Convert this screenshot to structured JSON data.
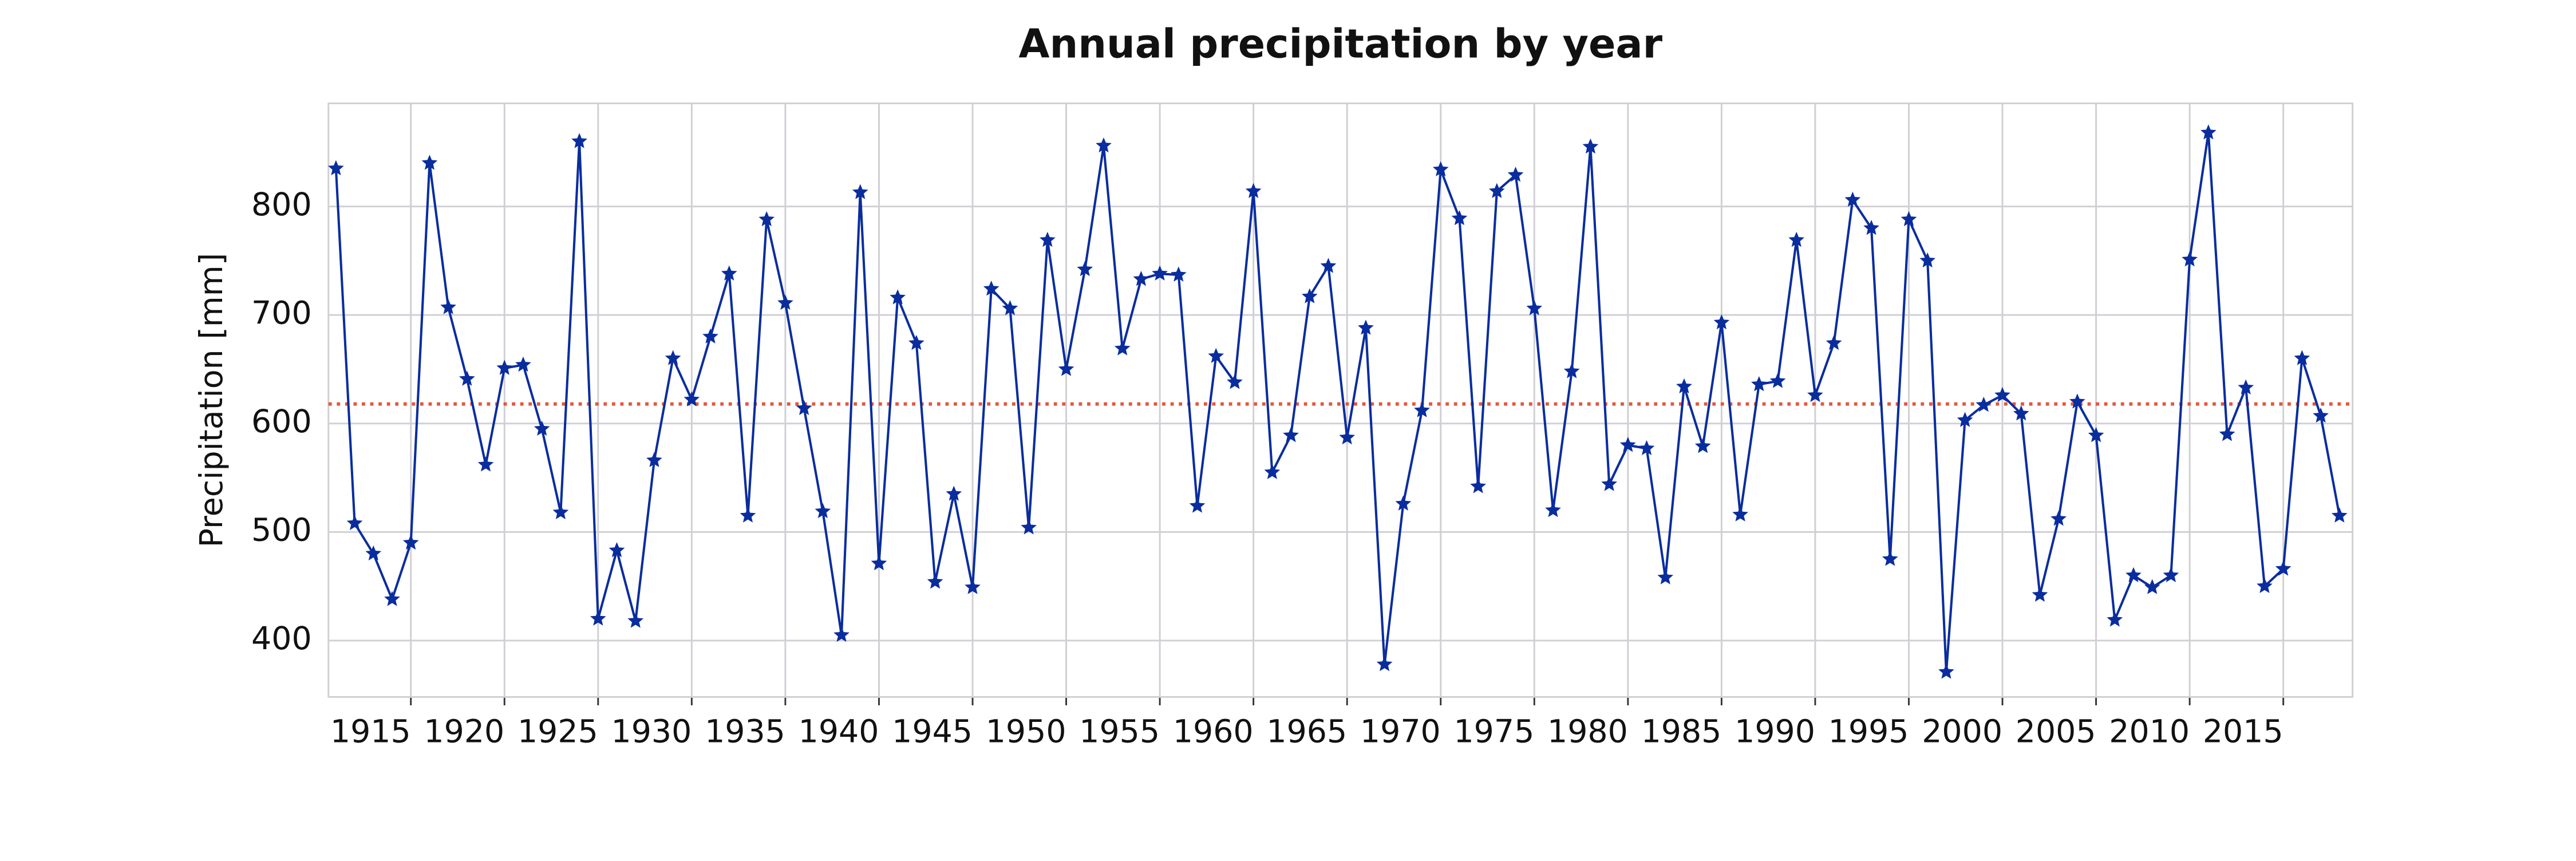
{
  "chart_data": {
    "type": "line",
    "title": "Annual precipitation by year",
    "y_label": "Precipitation [mm]",
    "x": [
      1911,
      1912,
      1913,
      1914,
      1915,
      1916,
      1917,
      1918,
      1919,
      1920,
      1921,
      1922,
      1923,
      1924,
      1925,
      1926,
      1927,
      1928,
      1929,
      1930,
      1931,
      1932,
      1933,
      1934,
      1935,
      1936,
      1937,
      1938,
      1939,
      1940,
      1941,
      1942,
      1943,
      1944,
      1945,
      1946,
      1947,
      1948,
      1949,
      1950,
      1951,
      1952,
      1953,
      1954,
      1955,
      1956,
      1957,
      1958,
      1959,
      1960,
      1961,
      1962,
      1963,
      1964,
      1965,
      1966,
      1967,
      1968,
      1969,
      1970,
      1971,
      1972,
      1973,
      1974,
      1975,
      1976,
      1977,
      1978,
      1979,
      1980,
      1981,
      1982,
      1983,
      1984,
      1985,
      1986,
      1987,
      1988,
      1989,
      1990,
      1991,
      1992,
      1993,
      1994,
      1995,
      1996,
      1997,
      1998,
      1999,
      2000,
      2001,
      2002,
      2003,
      2004,
      2005,
      2006,
      2007,
      2008,
      2009,
      2010,
      2011,
      2012,
      2013,
      2014,
      2015,
      2016,
      2017,
      2018
    ],
    "series": [
      {
        "name": "Precipitation",
        "color": "#0a2d9e",
        "marker": "star",
        "values": [
          835,
          508,
          480,
          438,
          490,
          840,
          707,
          641,
          562,
          651,
          654,
          595,
          518,
          860,
          420,
          483,
          418,
          566,
          660,
          622,
          680,
          738,
          515,
          788,
          711,
          614,
          519,
          405,
          813,
          471,
          716,
          674,
          454,
          535,
          449,
          724,
          706,
          504,
          769,
          650,
          742,
          856,
          669,
          733,
          738,
          737,
          524,
          662,
          638,
          814,
          555,
          589,
          717,
          745,
          587,
          688,
          378,
          526,
          612,
          834,
          789,
          542,
          814,
          829,
          706,
          520,
          648,
          855,
          544,
          580,
          577,
          458,
          634,
          579,
          693,
          516,
          636,
          639,
          769,
          626,
          674,
          806,
          780,
          475,
          788,
          750,
          371,
          603,
          617,
          626,
          609,
          442,
          512,
          620,
          589,
          419,
          460,
          449,
          460,
          751,
          868,
          590,
          633,
          450,
          466,
          660,
          607,
          515
        ]
      }
    ],
    "hline": {
      "value": 618,
      "color": "#e4573d",
      "style": "dotted"
    },
    "xlim": [
      1910.6,
      2018.7
    ],
    "xticks": [
      1915,
      1920,
      1925,
      1930,
      1935,
      1940,
      1945,
      1950,
      1955,
      1960,
      1965,
      1970,
      1975,
      1980,
      1985,
      1990,
      1995,
      2000,
      2005,
      2010,
      2015
    ],
    "ylim": [
      348,
      895
    ],
    "yticks": [
      400,
      500,
      600,
      700,
      800
    ],
    "grid": true
  }
}
